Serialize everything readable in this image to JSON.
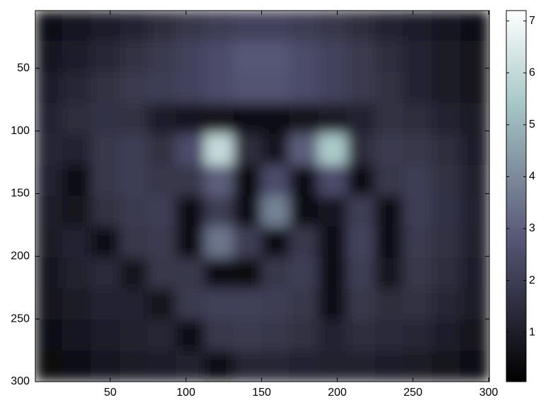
{
  "chart_data": {
    "type": "heatmap",
    "colormap": "bone",
    "x": [
      9,
      28,
      47,
      66,
      84,
      103,
      122,
      141,
      159,
      178,
      197,
      216,
      234,
      253,
      272,
      291
    ],
    "y": [
      16,
      41,
      66,
      90,
      115,
      140,
      164,
      189,
      214,
      238,
      263,
      288
    ],
    "z": [
      [
        0.6,
        0.8,
        1.0,
        1.2,
        1.5,
        1.8,
        2.0,
        2.2,
        2.2,
        2.0,
        1.8,
        1.5,
        1.2,
        1.0,
        0.8,
        0.6
      ],
      [
        0.8,
        1.0,
        1.3,
        1.6,
        1.9,
        2.2,
        2.5,
        2.8,
        2.8,
        2.5,
        2.2,
        1.9,
        1.5,
        1.2,
        0.9,
        0.7
      ],
      [
        1.0,
        1.3,
        1.6,
        1.9,
        2.0,
        2.2,
        2.5,
        2.7,
        2.7,
        2.5,
        2.2,
        1.9,
        1.6,
        1.2,
        0.9,
        0.7
      ],
      [
        1.2,
        1.5,
        1.7,
        1.6,
        1.0,
        0.8,
        0.7,
        0.6,
        0.6,
        0.7,
        0.9,
        1.2,
        1.6,
        1.5,
        1.2,
        0.9
      ],
      [
        1.3,
        1.2,
        1.8,
        2.0,
        1.6,
        2.5,
        6.0,
        1.5,
        0.8,
        3.0,
        5.5,
        1.5,
        1.9,
        1.8,
        1.5,
        1.0
      ],
      [
        1.2,
        0.6,
        1.8,
        2.0,
        1.8,
        1.8,
        3.0,
        0.4,
        2.5,
        0.5,
        2.5,
        0.5,
        1.8,
        2.0,
        1.6,
        1.1
      ],
      [
        1.0,
        0.7,
        1.6,
        1.9,
        2.0,
        0.5,
        2.0,
        0.5,
        3.8,
        0.5,
        0.8,
        2.0,
        0.6,
        2.0,
        1.7,
        1.2
      ],
      [
        0.9,
        1.2,
        0.6,
        1.8,
        1.9,
        0.6,
        3.5,
        2.0,
        0.5,
        1.8,
        0.6,
        2.2,
        0.6,
        1.9,
        1.6,
        1.1
      ],
      [
        0.8,
        1.1,
        1.4,
        0.7,
        1.8,
        1.8,
        0.6,
        0.4,
        1.8,
        2.0,
        0.6,
        2.0,
        0.7,
        1.8,
        1.5,
        1.0
      ],
      [
        0.7,
        0.9,
        1.2,
        1.2,
        0.7,
        1.9,
        2.1,
        2.1,
        2.0,
        1.8,
        0.5,
        1.8,
        1.5,
        1.6,
        1.3,
        0.9
      ],
      [
        0.6,
        0.8,
        1.0,
        1.1,
        1.3,
        0.6,
        1.8,
        1.9,
        1.8,
        1.6,
        1.2,
        1.5,
        1.4,
        1.3,
        1.0,
        0.7
      ],
      [
        0.4,
        0.6,
        0.8,
        0.9,
        1.0,
        1.1,
        0.5,
        1.3,
        1.3,
        1.2,
        1.1,
        1.1,
        1.0,
        0.9,
        0.7,
        0.5
      ]
    ],
    "xlim": [
      0.5,
      300.5
    ],
    "xticks": [
      50,
      100,
      150,
      200,
      250,
      300
    ],
    "ylim": [
      4,
      300
    ],
    "yticks": [
      50,
      100,
      150,
      200,
      250,
      300
    ],
    "clim": [
      0.05,
      7.2
    ],
    "cticks": [
      1,
      2,
      3,
      4,
      5,
      6,
      7
    ]
  }
}
